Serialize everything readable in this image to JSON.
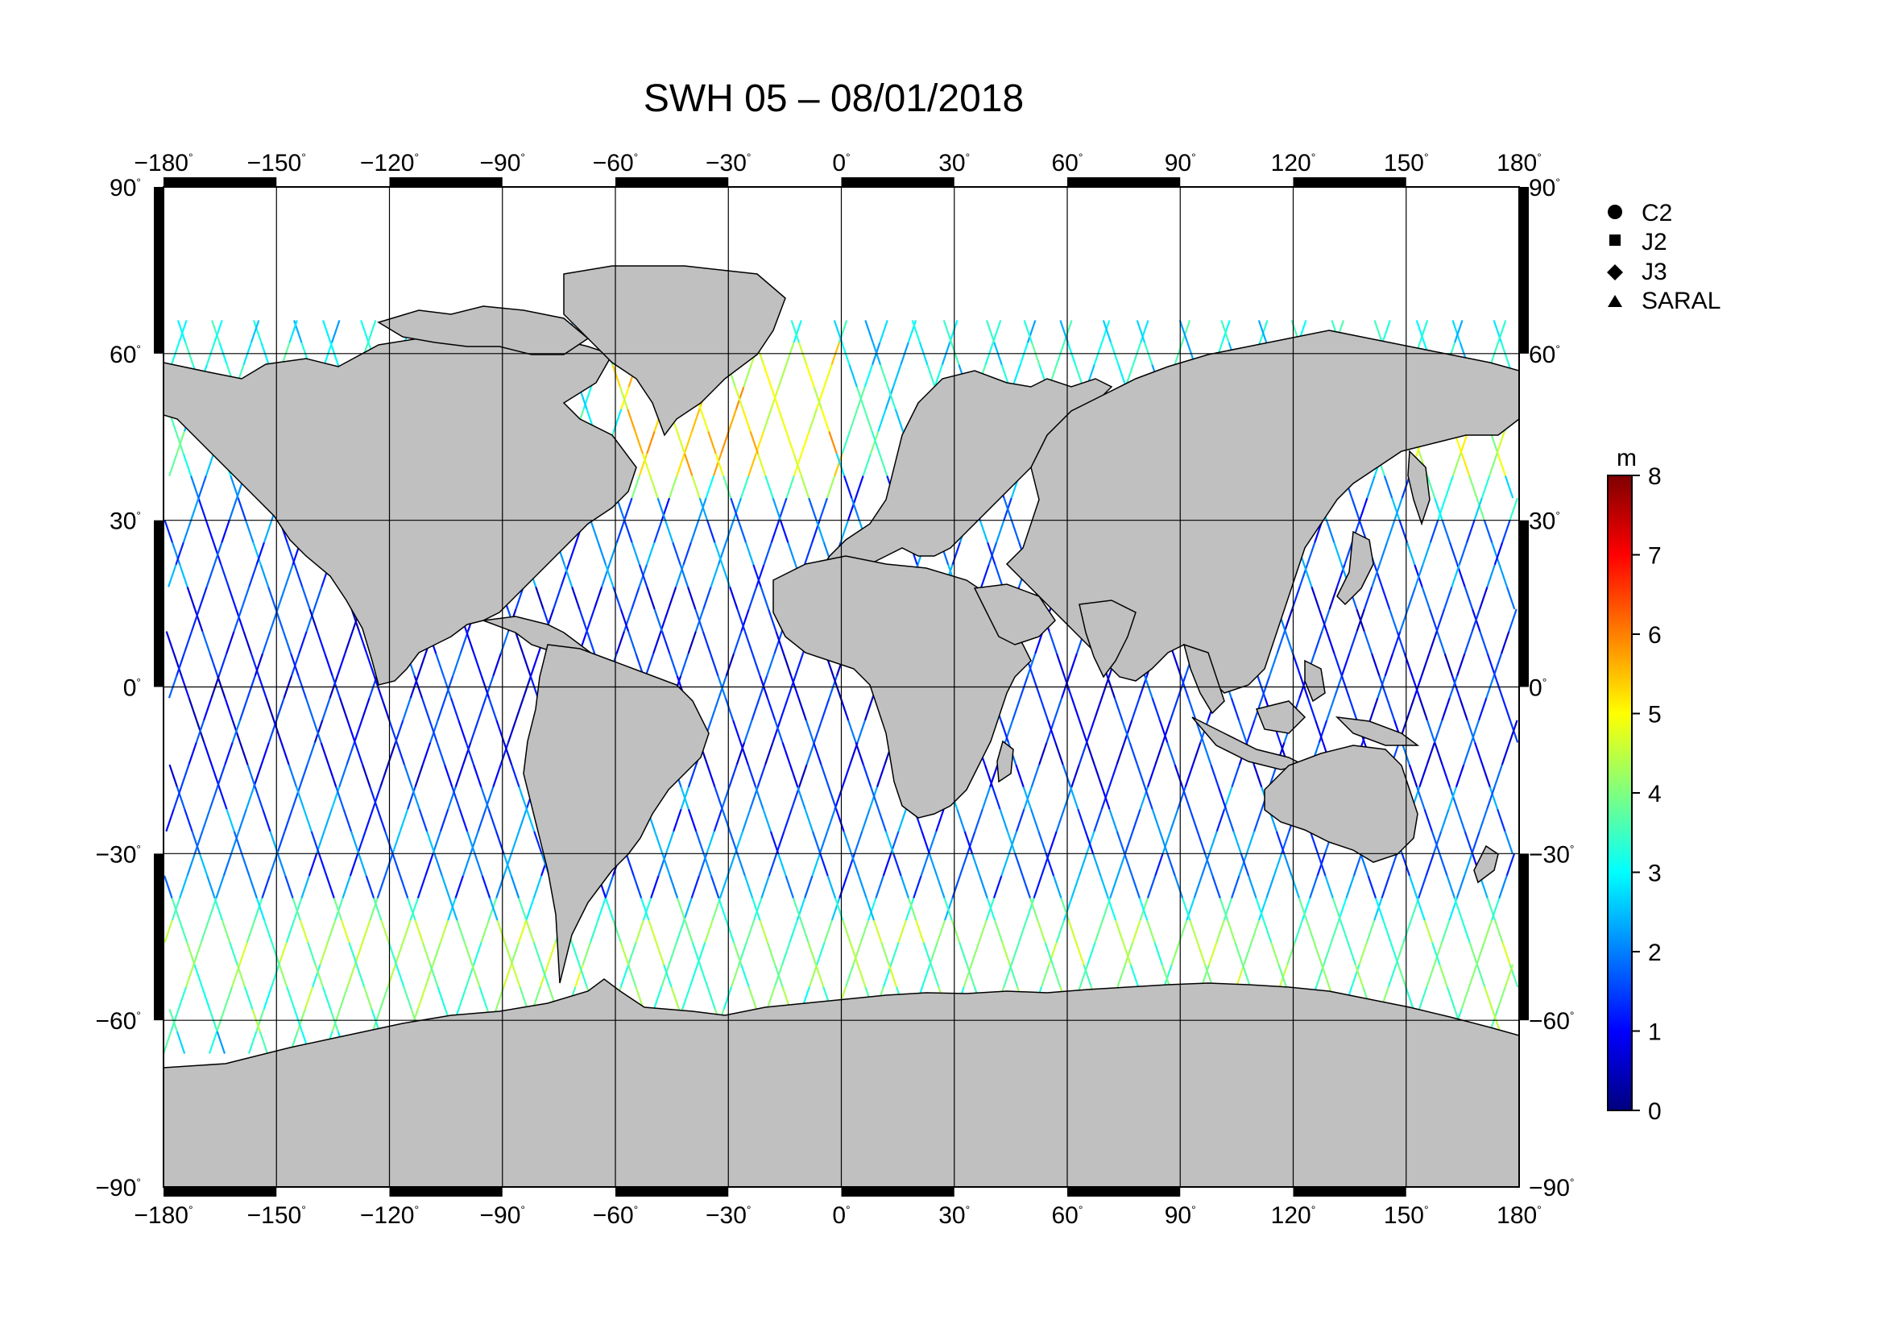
{
  "title": "SWH 05 – 08/01/2018",
  "axes": {
    "lon_ticks": [
      "−180",
      "−150",
      "−120",
      "−90",
      "−60",
      "−30",
      "0",
      "30",
      "60",
      "90",
      "120",
      "150",
      "180"
    ],
    "lat_ticks": [
      "90",
      "60",
      "30",
      "0",
      "−30",
      "−60",
      "−90"
    ],
    "degree_symbol": "°"
  },
  "legend": {
    "items": [
      {
        "label": "C2",
        "symbol": "circle"
      },
      {
        "label": "J2",
        "symbol": "square"
      },
      {
        "label": "J3",
        "symbol": "diamond"
      },
      {
        "label": "SARAL",
        "symbol": "triangle"
      }
    ]
  },
  "colorbar": {
    "unit": "m",
    "min": 0,
    "max": 8,
    "ticks": [
      "0",
      "1",
      "2",
      "3",
      "4",
      "5",
      "6",
      "7",
      "8"
    ],
    "colormap": "jet"
  },
  "colors": {
    "land": "#c0c0c0",
    "ocean": "#ffffff",
    "grid": "#000000",
    "frame_dark": "#000000",
    "frame_light": "#ffffff"
  }
}
